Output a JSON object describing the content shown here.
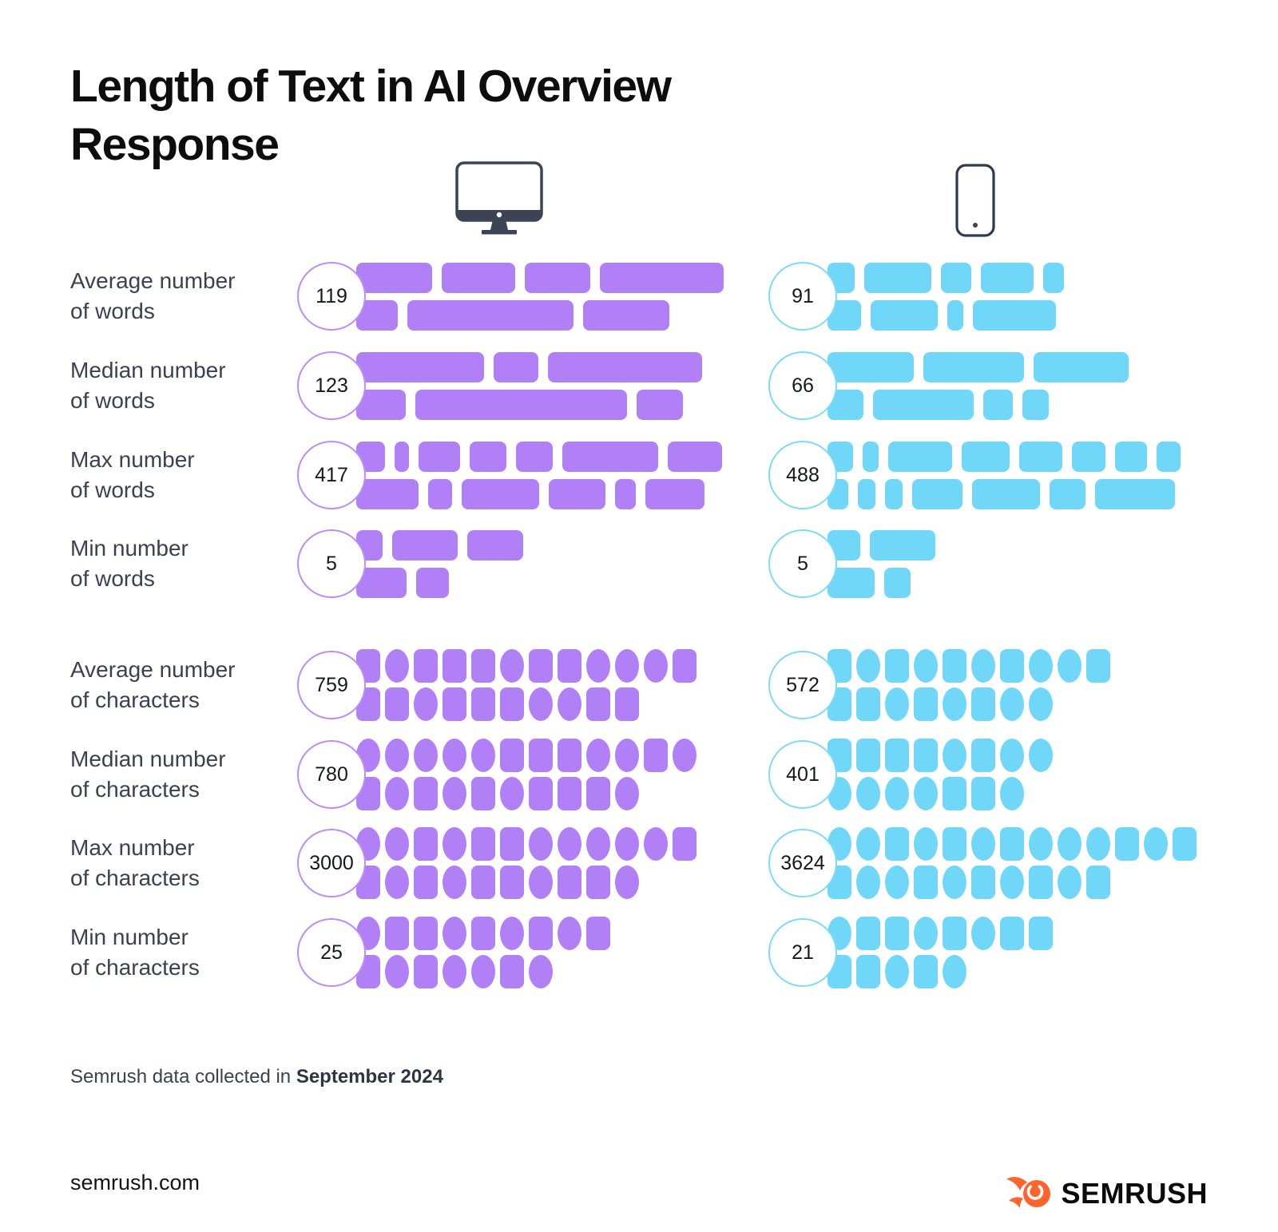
{
  "title": {
    "line1": "Length of Text in AI Overview",
    "line2": "Response"
  },
  "colors": {
    "desktop": "#B180F6",
    "desktop_stroke": "#BB8EF7",
    "mobile": "#70D7F8",
    "mobile_stroke": "#7DDBF9",
    "label_text": "#3A4250",
    "title_text": "#0D0D0D",
    "device_icon": "#3C4454",
    "brand_orange": "#FF642D"
  },
  "icons": {
    "desktop": "desktop-monitor-icon",
    "mobile": "mobile-phone-icon",
    "brand": "semrush-flame-icon"
  },
  "rows": [
    {
      "label_lines": [
        "Average number",
        "of words"
      ],
      "kind": "bars",
      "desktop": {
        "value": "119",
        "lines": [
          [
            95,
            92,
            82,
            155
          ],
          [
            52,
            208,
            108
          ]
        ]
      },
      "mobile": {
        "value": "91",
        "lines": [
          [
            34,
            84,
            38,
            66,
            26
          ],
          [
            42,
            84,
            20,
            104
          ]
        ]
      }
    },
    {
      "label_lines": [
        "Median number",
        "of words"
      ],
      "kind": "bars",
      "desktop": {
        "value": "123",
        "lines": [
          [
            160,
            56,
            193
          ],
          [
            62,
            265,
            58
          ]
        ]
      },
      "mobile": {
        "value": "66",
        "lines": [
          [
            108,
            126,
            119
          ],
          [
            45,
            126,
            37,
            33
          ]
        ]
      }
    },
    {
      "label_lines": [
        "Max number",
        "of words"
      ],
      "kind": "bars",
      "desktop": {
        "value": "417",
        "lines": [
          [
            36,
            18,
            52,
            46,
            46,
            120,
            68
          ],
          [
            78,
            30,
            97,
            71,
            26,
            74
          ]
        ]
      },
      "mobile": {
        "value": "488",
        "lines": [
          [
            32,
            20,
            80,
            60,
            54,
            42,
            40,
            30
          ],
          [
            26,
            22,
            22,
            63,
            85,
            45,
            100
          ]
        ]
      }
    },
    {
      "label_lines": [
        "Min number",
        "of words"
      ],
      "kind": "bars",
      "desktop": {
        "value": "5",
        "lines": [
          [
            33,
            82,
            70
          ],
          [
            63,
            41
          ]
        ]
      },
      "mobile": {
        "value": "5",
        "lines": [
          [
            41,
            82
          ],
          [
            59,
            33
          ]
        ]
      }
    },
    {
      "label_lines": [
        "Average number",
        "of characters"
      ],
      "kind": "glyphs",
      "desktop": {
        "value": "759",
        "lines": [
          [
            "s",
            "c",
            "s",
            "s",
            "s",
            "c",
            "s",
            "s",
            "c",
            "c",
            "c",
            "s"
          ],
          [
            "s",
            "s",
            "c",
            "s",
            "s",
            "s",
            "c",
            "c",
            "s",
            "s"
          ]
        ]
      },
      "mobile": {
        "value": "572",
        "lines": [
          [
            "s",
            "c",
            "s",
            "c",
            "s",
            "c",
            "s",
            "c",
            "c",
            "s"
          ],
          [
            "s",
            "s",
            "c",
            "s",
            "c",
            "s",
            "c",
            "c"
          ]
        ]
      }
    },
    {
      "label_lines": [
        "Median number",
        "of characters"
      ],
      "kind": "glyphs",
      "desktop": {
        "value": "780",
        "lines": [
          [
            "c",
            "c",
            "c",
            "c",
            "c",
            "s",
            "s",
            "s",
            "c",
            "c",
            "s",
            "c"
          ],
          [
            "s",
            "c",
            "s",
            "c",
            "s",
            "c",
            "s",
            "s",
            "s",
            "c"
          ]
        ]
      },
      "mobile": {
        "value": "401",
        "lines": [
          [
            "s",
            "s",
            "s",
            "s",
            "c",
            "s",
            "c",
            "c"
          ],
          [
            "c",
            "c",
            "c",
            "c",
            "s",
            "s",
            "c"
          ]
        ]
      }
    },
    {
      "label_lines": [
        "Max number",
        "of characters"
      ],
      "kind": "glyphs",
      "desktop": {
        "value": "3000",
        "lines": [
          [
            "c",
            "c",
            "s",
            "c",
            "s",
            "s",
            "c",
            "c",
            "c",
            "c",
            "c",
            "s"
          ],
          [
            "s",
            "c",
            "s",
            "c",
            "s",
            "s",
            "c",
            "s",
            "s",
            "c"
          ]
        ]
      },
      "mobile": {
        "value": "3624",
        "lines": [
          [
            "c",
            "c",
            "s",
            "c",
            "s",
            "c",
            "s",
            "c",
            "c",
            "c",
            "s",
            "c",
            "s"
          ],
          [
            "s",
            "c",
            "c",
            "s",
            "c",
            "s",
            "c",
            "s",
            "c",
            "s"
          ]
        ]
      }
    },
    {
      "label_lines": [
        "Min number",
        "of characters"
      ],
      "kind": "glyphs",
      "desktop": {
        "value": "25",
        "lines": [
          [
            "c",
            "s",
            "s",
            "c",
            "s",
            "c",
            "s",
            "c",
            "s"
          ],
          [
            "s",
            "c",
            "s",
            "c",
            "c",
            "s",
            "c"
          ]
        ]
      },
      "mobile": {
        "value": "21",
        "lines": [
          [
            "c",
            "s",
            "s",
            "c",
            "s",
            "c",
            "s",
            "s"
          ],
          [
            "s",
            "s",
            "c",
            "s",
            "c"
          ]
        ]
      }
    }
  ],
  "source_note": {
    "prefix": "Semrush data collected in ",
    "bold": "September 2024"
  },
  "footer": {
    "site": "semrush.com",
    "brand": "SEMRUSH"
  },
  "chart_data": {
    "type": "table",
    "title": "Length of Text in AI Overview Response",
    "categories": [
      "Average number of words",
      "Median number of words",
      "Max number of words",
      "Min number of words",
      "Average number of characters",
      "Median number of characters",
      "Max number of characters",
      "Min number of characters"
    ],
    "series": [
      {
        "name": "Desktop",
        "values": [
          119,
          123,
          417,
          5,
          759,
          780,
          3000,
          25
        ]
      },
      {
        "name": "Mobile",
        "values": [
          91,
          66,
          488,
          5,
          572,
          401,
          3624,
          21
        ]
      }
    ],
    "legend_position": "top-icons",
    "annotations": [
      "Semrush data collected in September 2024"
    ]
  }
}
